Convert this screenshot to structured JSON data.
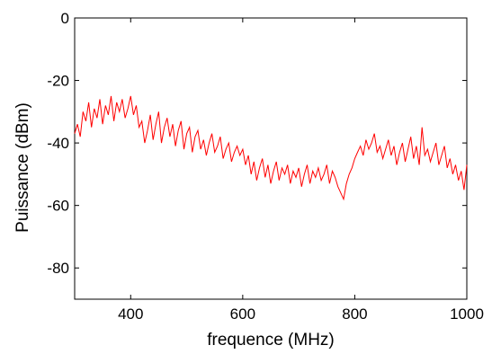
{
  "chart_data": {
    "type": "line",
    "title": "",
    "xlabel": "frequence (MHz)",
    "ylabel": "Puissance (dBm)",
    "xlim": [
      300,
      1000
    ],
    "ylim": [
      -90,
      0
    ],
    "xticks": [
      400,
      600,
      800,
      1000
    ],
    "yticks": [
      0,
      -20,
      -40,
      -60,
      -80
    ],
    "xtick_labels": [
      "400",
      "600",
      "800",
      "1000"
    ],
    "ytick_labels": [
      "0",
      "-20",
      "-40",
      "-60",
      "-80"
    ],
    "grid": false,
    "series": [
      {
        "color": "#ff0000",
        "x": [
          300,
          305,
          310,
          315,
          320,
          325,
          330,
          335,
          340,
          345,
          350,
          355,
          360,
          365,
          370,
          375,
          380,
          385,
          390,
          395,
          400,
          405,
          410,
          415,
          420,
          425,
          430,
          435,
          440,
          445,
          450,
          455,
          460,
          465,
          470,
          475,
          480,
          485,
          490,
          495,
          500,
          505,
          510,
          515,
          520,
          525,
          530,
          535,
          540,
          545,
          550,
          555,
          560,
          565,
          570,
          575,
          580,
          585,
          590,
          595,
          600,
          605,
          610,
          615,
          620,
          625,
          630,
          635,
          640,
          645,
          650,
          655,
          660,
          665,
          670,
          675,
          680,
          685,
          690,
          695,
          700,
          705,
          710,
          715,
          720,
          725,
          730,
          735,
          740,
          745,
          750,
          755,
          760,
          765,
          770,
          775,
          780,
          785,
          790,
          795,
          800,
          805,
          810,
          815,
          820,
          825,
          830,
          835,
          840,
          845,
          850,
          855,
          860,
          865,
          870,
          875,
          880,
          885,
          890,
          895,
          900,
          905,
          910,
          915,
          920,
          925,
          930,
          935,
          940,
          945,
          950,
          955,
          960,
          965,
          970,
          975,
          980,
          985,
          990,
          995,
          1000
        ],
        "values": [
          -37,
          -34,
          -38,
          -30,
          -33,
          -27,
          -35,
          -29,
          -32,
          -26,
          -34,
          -28,
          -31,
          -25,
          -33,
          -27,
          -30,
          -26,
          -32,
          -29,
          -25,
          -31,
          -28,
          -35,
          -33,
          -40,
          -36,
          -31,
          -39,
          -34,
          -30,
          -40,
          -35,
          -32,
          -38,
          -34,
          -41,
          -36,
          -33,
          -42,
          -37,
          -35,
          -43,
          -38,
          -36,
          -42,
          -39,
          -44,
          -40,
          -37,
          -43,
          -41,
          -38,
          -45,
          -42,
          -40,
          -46,
          -43,
          -41,
          -44,
          -42,
          -47,
          -44,
          -50,
          -46,
          -52,
          -48,
          -45,
          -51,
          -47,
          -53,
          -49,
          -46,
          -52,
          -48,
          -50,
          -47,
          -53,
          -49,
          -51,
          -48,
          -54,
          -50,
          -47,
          -53,
          -49,
          -51,
          -48,
          -52,
          -50,
          -47,
          -53,
          -49,
          -51,
          -54,
          -56,
          -58,
          -53,
          -50,
          -48,
          -45,
          -43,
          -41,
          -44,
          -39,
          -42,
          -40,
          -37,
          -43,
          -41,
          -45,
          -42,
          -39,
          -44,
          -41,
          -47,
          -43,
          -40,
          -46,
          -42,
          -38,
          -45,
          -41,
          -47,
          -35,
          -44,
          -42,
          -46,
          -43,
          -40,
          -47,
          -44,
          -41,
          -48,
          -45,
          -50,
          -47,
          -52,
          -49,
          -55,
          -47
        ]
      }
    ]
  }
}
